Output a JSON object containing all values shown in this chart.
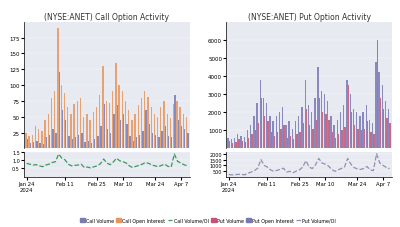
{
  "title_left": "(NYSE:ANET) Call Option Activity",
  "title_right": "(NYSE:ANET) Put Option Activity",
  "bg_color": "#e8eaf2",
  "n_bars": 51,
  "call_volume": [
    15,
    8,
    10,
    12,
    9,
    7,
    18,
    22,
    30,
    25,
    120,
    60,
    45,
    20,
    15,
    18,
    22,
    25,
    10,
    12,
    8,
    15,
    20,
    35,
    70,
    30,
    25,
    55,
    68,
    45,
    55,
    38,
    20,
    12,
    18,
    22,
    28,
    60,
    38,
    25,
    22,
    18,
    28,
    35,
    20,
    18,
    85,
    45,
    35,
    30,
    25
  ],
  "call_oi": [
    25,
    20,
    22,
    35,
    30,
    28,
    45,
    55,
    80,
    90,
    190,
    100,
    88,
    65,
    55,
    70,
    75,
    80,
    50,
    55,
    45,
    58,
    65,
    85,
    130,
    75,
    72,
    90,
    135,
    100,
    90,
    75,
    60,
    45,
    55,
    68,
    80,
    90,
    82,
    65,
    55,
    50,
    65,
    75,
    55,
    48,
    70,
    75,
    65,
    55,
    50
  ],
  "call_volume_ma": [
    0.8,
    0.75,
    0.7,
    0.72,
    0.65,
    0.6,
    0.7,
    0.75,
    0.85,
    0.9,
    1.35,
    1.1,
    1.0,
    0.75,
    0.65,
    0.68,
    0.7,
    0.75,
    0.55,
    0.58,
    0.52,
    0.6,
    0.65,
    0.78,
    1.05,
    0.82,
    0.72,
    0.88,
    1.1,
    0.95,
    0.9,
    0.82,
    0.65,
    0.55,
    0.62,
    0.68,
    0.75,
    0.85,
    0.8,
    0.7,
    0.65,
    0.6,
    0.68,
    0.75,
    0.62,
    0.58,
    1.35,
    0.92,
    0.82,
    0.72,
    0.65
  ],
  "put_volume": [
    400,
    300,
    350,
    500,
    400,
    350,
    600,
    800,
    1000,
    1400,
    2800,
    1800,
    1500,
    900,
    700,
    900,
    1100,
    1300,
    600,
    700,
    500,
    800,
    900,
    1400,
    2200,
    1300,
    1100,
    1600,
    2800,
    2000,
    1900,
    1600,
    900,
    600,
    800,
    1000,
    1200,
    3500,
    2000,
    1300,
    1100,
    1000,
    1100,
    1500,
    900,
    800,
    6000,
    2800,
    2200,
    1700,
    1400
  ],
  "put_oi": [
    600,
    500,
    600,
    800,
    700,
    650,
    1000,
    1300,
    1800,
    2500,
    3800,
    2800,
    2500,
    1800,
    1500,
    1800,
    2000,
    2300,
    1300,
    1500,
    1100,
    1500,
    1800,
    2300,
    3800,
    2400,
    2000,
    2800,
    4500,
    3200,
    3000,
    2600,
    1800,
    1300,
    1600,
    2000,
    2400,
    3800,
    3000,
    2200,
    2000,
    1800,
    2000,
    2400,
    1600,
    1400,
    4800,
    4200,
    3500,
    2600,
    2200
  ],
  "put_volume_ma": [
    200,
    170,
    180,
    220,
    200,
    180,
    320,
    420,
    540,
    750,
    1500,
    1000,
    850,
    600,
    480,
    560,
    650,
    750,
    420,
    480,
    360,
    500,
    600,
    850,
    1400,
    850,
    720,
    1050,
    1600,
    1200,
    1100,
    950,
    650,
    480,
    600,
    720,
    850,
    1600,
    1100,
    800,
    700,
    640,
    720,
    900,
    600,
    540,
    2000,
    1200,
    1000,
    820,
    700
  ],
  "call_bar_color": "#7b7bb0",
  "call_oi_color": "#e8955a",
  "call_ma_color": "#3a9a5c",
  "put_bar_color": "#c05575",
  "put_oi_color": "#7878b8",
  "put_ma_color": "#9090b0",
  "call_ylim_main": [
    0,
    200
  ],
  "call_ylim_sub": [
    0,
    1.5
  ],
  "put_ylim_main": [
    0,
    7000
  ],
  "put_ylim_sub": [
    0,
    2200
  ],
  "call_yticks_main": [
    25,
    50,
    75,
    100,
    125,
    150,
    175
  ],
  "put_yticks_main": [
    1000,
    2000,
    3000,
    4000,
    5000,
    6000
  ],
  "call_yticks_sub": [
    0.5,
    1.0,
    1.5
  ],
  "put_yticks_sub": [
    500,
    1000,
    1500,
    2000
  ],
  "tick_positions": [
    0,
    12,
    22,
    30,
    40,
    48
  ],
  "tick_labels_left": [
    "Jan 24\n2024",
    "Feb 11",
    "Feb 25",
    "Mar 10",
    "Mar 24",
    "Apr 7"
  ],
  "tick_labels_right": [
    "Jan 24\n2024",
    "Feb 11",
    "Feb 25",
    "Mar 10",
    "Mar 24",
    "Apr 7"
  ],
  "legend_labels": [
    "Call Volume",
    "Call Open Interest",
    "Call Volume/OI",
    "Put Volume",
    "Put Open Interest",
    "Put Volume/OI"
  ],
  "legend_colors": [
    "#7b7bb0",
    "#e8955a",
    "#3a9a5c",
    "#c05575",
    "#7878b8",
    "#9090b0"
  ]
}
